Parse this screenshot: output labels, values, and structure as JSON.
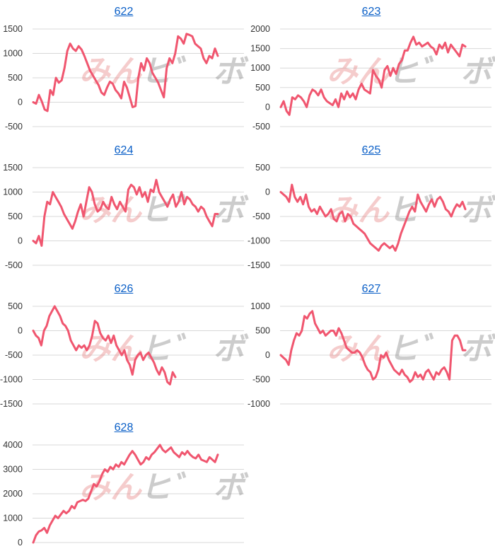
{
  "line_color": "#f0566f",
  "watermark": {
    "part1": "みん",
    "part2": "ヒ゛ ボ"
  },
  "chart_data": [
    {
      "type": "line",
      "title": "622",
      "ylim": [
        -500,
        1500
      ],
      "yticks": [
        1500,
        1000,
        500,
        0,
        -500
      ],
      "values": [
        0,
        -30,
        150,
        20,
        -150,
        -180,
        250,
        150,
        500,
        400,
        450,
        700,
        1050,
        1200,
        1100,
        1050,
        1150,
        1080,
        950,
        800,
        650,
        550,
        450,
        350,
        200,
        150,
        300,
        420,
        380,
        250,
        180,
        80,
        420,
        300,
        100,
        -100,
        -80,
        500,
        800,
        650,
        900,
        800,
        600,
        500,
        400,
        250,
        100,
        700,
        900,
        800,
        1000,
        1350,
        1300,
        1200,
        1400,
        1380,
        1350,
        1200,
        1150,
        1100,
        900,
        800,
        950,
        900,
        1100,
        950
      ]
    },
    {
      "type": "line",
      "title": "623",
      "ylim": [
        -500,
        2000
      ],
      "yticks": [
        2000,
        1500,
        1000,
        500,
        0,
        -500
      ],
      "values": [
        0,
        150,
        -100,
        -200,
        250,
        200,
        300,
        250,
        150,
        0,
        300,
        450,
        400,
        300,
        450,
        250,
        150,
        100,
        50,
        200,
        0,
        350,
        200,
        400,
        250,
        350,
        200,
        450,
        600,
        450,
        400,
        350,
        950,
        800,
        700,
        500,
        950,
        1050,
        800,
        1000,
        850,
        1100,
        1200,
        1450,
        1450,
        1650,
        1800,
        1600,
        1650,
        1550,
        1600,
        1650,
        1550,
        1500,
        1350,
        1600,
        1500,
        1650,
        1400,
        1600,
        1500,
        1400,
        1300,
        1600,
        1550
      ]
    },
    {
      "type": "line",
      "title": "624",
      "ylim": [
        -500,
        1500
      ],
      "yticks": [
        1500,
        1000,
        500,
        0,
        -500
      ],
      "values": [
        0,
        -50,
        100,
        -100,
        500,
        800,
        750,
        1000,
        900,
        800,
        700,
        550,
        450,
        350,
        250,
        400,
        600,
        750,
        500,
        800,
        1100,
        1000,
        750,
        600,
        650,
        800,
        700,
        650,
        900,
        750,
        650,
        800,
        700,
        600,
        1050,
        1150,
        1100,
        950,
        1100,
        900,
        1000,
        800,
        1050,
        1000,
        1250,
        1000,
        900,
        800,
        700,
        850,
        950,
        700,
        800,
        1000,
        750,
        900,
        850,
        750,
        700,
        600,
        700,
        650,
        500,
        400,
        300,
        550,
        550
      ]
    },
    {
      "type": "line",
      "title": "625",
      "ylim": [
        -1500,
        500
      ],
      "yticks": [
        500,
        0,
        -500,
        -1000,
        -1500
      ],
      "values": [
        0,
        -50,
        -100,
        -200,
        150,
        -100,
        -200,
        -100,
        -250,
        -50,
        -300,
        -400,
        -350,
        -450,
        -300,
        -400,
        -500,
        -450,
        -350,
        -550,
        -600,
        -450,
        -400,
        -600,
        -450,
        -500,
        -650,
        -700,
        -750,
        -800,
        -850,
        -950,
        -1050,
        -1100,
        -1150,
        -1200,
        -1100,
        -1050,
        -1100,
        -1150,
        -1100,
        -1200,
        -1050,
        -850,
        -700,
        -550,
        -400,
        -300,
        -400,
        -50,
        -200,
        -300,
        -400,
        -250,
        -150,
        -300,
        -150,
        -100,
        -200,
        -350,
        -400,
        -500,
        -350,
        -250,
        -300,
        -200,
        -350
      ]
    },
    {
      "type": "line",
      "title": "626",
      "ylim": [
        -1500,
        500
      ],
      "yticks": [
        500,
        0,
        -500,
        -1000,
        -1500
      ],
      "values": [
        0,
        -100,
        -150,
        -300,
        0,
        100,
        300,
        400,
        500,
        400,
        300,
        150,
        100,
        0,
        -200,
        -300,
        -400,
        -300,
        -350,
        -300,
        -400,
        -300,
        -100,
        200,
        150,
        -50,
        -150,
        -200,
        -100,
        -250,
        -100,
        -300,
        -400,
        -500,
        -400,
        -600,
        -700,
        -900,
        -600,
        -500,
        -450,
        -600,
        -500,
        -450,
        -550,
        -650,
        -800,
        -900,
        -750,
        -850,
        -1050,
        -1100,
        -850,
        -950
      ]
    },
    {
      "type": "line",
      "title": "627",
      "ylim": [
        -1000,
        1000
      ],
      "yticks": [
        1000,
        500,
        0,
        -500,
        -1000
      ],
      "values": [
        0,
        -50,
        -100,
        -200,
        100,
        300,
        450,
        400,
        500,
        800,
        750,
        850,
        900,
        650,
        550,
        450,
        500,
        400,
        450,
        500,
        500,
        400,
        550,
        450,
        300,
        150,
        100,
        50,
        50,
        100,
        50,
        -50,
        -200,
        -300,
        -350,
        -500,
        -450,
        -300,
        0,
        -50,
        50,
        -100,
        -200,
        -300,
        -350,
        -400,
        -300,
        -400,
        -450,
        -550,
        -500,
        -350,
        -450,
        -400,
        -500,
        -350,
        -300,
        -400,
        -500,
        -350,
        -400,
        -300,
        -250,
        -350,
        -500,
        300,
        400,
        400,
        300,
        100,
        100
      ]
    },
    {
      "type": "line",
      "title": "628",
      "ylim": [
        0,
        4000
      ],
      "yticks": [
        4000,
        3000,
        2000,
        1000,
        0
      ],
      "values": [
        0,
        300,
        450,
        500,
        600,
        400,
        700,
        900,
        1100,
        1000,
        1150,
        1300,
        1200,
        1300,
        1500,
        1400,
        1650,
        1700,
        1750,
        1700,
        1800,
        2100,
        2400,
        2300,
        2500,
        2800,
        3000,
        2900,
        3100,
        3000,
        3200,
        3100,
        3300,
        3200,
        3400,
        3600,
        3750,
        3600,
        3400,
        3200,
        3300,
        3500,
        3400,
        3600,
        3700,
        3850,
        4000,
        3800,
        3700,
        3800,
        3900,
        3700,
        3600,
        3500,
        3700,
        3600,
        3750,
        3600,
        3500,
        3450,
        3600,
        3400,
        3350,
        3300,
        3500,
        3400,
        3300,
        3600
      ]
    }
  ]
}
